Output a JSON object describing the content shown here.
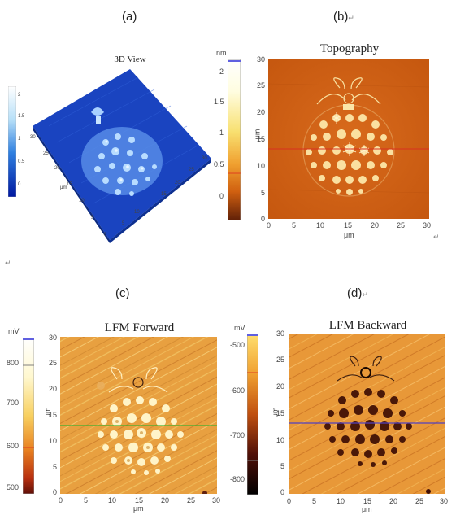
{
  "labels": {
    "a": "(a)",
    "b": "(b)",
    "c": "(c)",
    "d": "(d)",
    "return_mark": "↵"
  },
  "panel_a": {
    "title": "3D View",
    "colorbar_ticks": [
      "2",
      "1.5",
      "1",
      "0.5",
      "0"
    ],
    "axis_ticks_left": [
      "30",
      "25",
      "20",
      "15",
      "10",
      "5",
      "0"
    ],
    "axis_ticks_right": [
      "0",
      "5",
      "10",
      "15",
      "20",
      "25",
      "30"
    ],
    "axis_unit": "μm"
  },
  "panel_b": {
    "title": "Topography",
    "colorbar_unit": "nm",
    "colorbar_ticks": [
      "2",
      "1.5",
      "1",
      "0.5",
      "0"
    ],
    "y_ticks": [
      "30",
      "25",
      "20",
      "15",
      "10",
      "5",
      "0"
    ],
    "x_ticks": [
      "0",
      "5",
      "10",
      "15",
      "20",
      "25",
      "30"
    ],
    "y_label": "μm",
    "x_label": "μm",
    "line_color": "#d83020"
  },
  "panel_c": {
    "title": "LFM Forward",
    "colorbar_unit": "mV",
    "colorbar_ticks": [
      "800",
      "700",
      "600",
      "500"
    ],
    "y_ticks": [
      "30",
      "25",
      "20",
      "15",
      "10",
      "5",
      "0"
    ],
    "x_ticks": [
      "0",
      "5",
      "10",
      "15",
      "20",
      "25",
      "30"
    ],
    "y_label": "μm",
    "x_label": "μm",
    "line_color": "#40b030"
  },
  "panel_d": {
    "title": "LFM Backward",
    "colorbar_unit": "mV",
    "colorbar_ticks": [
      "-500",
      "-600",
      "-700",
      "-800"
    ],
    "y_ticks": [
      "30",
      "25",
      "20",
      "15",
      "10",
      "5",
      "0"
    ],
    "x_ticks": [
      "0",
      "5",
      "10",
      "15",
      "20",
      "25",
      "30"
    ],
    "y_label": "μm",
    "x_label": "μm",
    "line_color": "#5040c0"
  }
}
